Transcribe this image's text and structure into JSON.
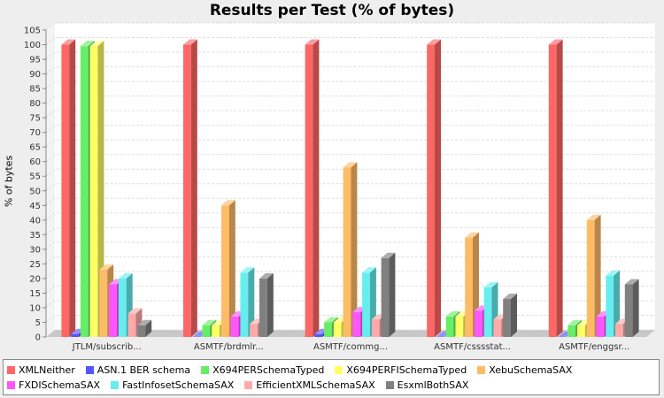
{
  "chart_data": {
    "type": "bar",
    "title": "Results per Test (% of bytes)",
    "xlabel": "",
    "ylabel": "% of bytes",
    "ylim": [
      0,
      105
    ],
    "yticks": [
      0,
      5,
      10,
      15,
      20,
      25,
      30,
      35,
      40,
      45,
      50,
      55,
      60,
      65,
      70,
      75,
      80,
      85,
      90,
      95,
      100,
      105
    ],
    "grid": true,
    "legend_position": "bottom",
    "categories": [
      "JTLM/subscrib...",
      "ASMTF/brdmlr...",
      "ASMTF/commg...",
      "ASMTF/csssstat...",
      "ASMTF/enggsr..."
    ],
    "series": [
      {
        "name": "XMLNeither",
        "color": "#ff6666",
        "values": [
          100,
          100,
          100,
          100,
          100
        ]
      },
      {
        "name": "ASN.1 BER schema",
        "color": "#5555ff",
        "values": [
          1,
          0,
          1,
          0,
          0
        ]
      },
      {
        "name": "X694PERSchemaTyped",
        "color": "#66ee66",
        "values": [
          99.5,
          4,
          5,
          7,
          4
        ]
      },
      {
        "name": "X694PERFISchemaTyped",
        "color": "#ffff66",
        "values": [
          99.5,
          4,
          5,
          7,
          4
        ]
      },
      {
        "name": "XebuSchemaSAX",
        "color": "#ffbb66",
        "values": [
          23,
          45,
          58,
          34,
          40
        ]
      },
      {
        "name": "FXDISchemaSAX",
        "color": "#ff55ff",
        "values": [
          18,
          7,
          8.5,
          9,
          7
        ]
      },
      {
        "name": "FastInfosetSchemaSAX",
        "color": "#66eeee",
        "values": [
          20,
          22,
          22,
          17,
          21
        ]
      },
      {
        "name": "EfficientXMLSchemaSAX",
        "color": "#ffaaaa",
        "values": [
          8,
          4.5,
          6,
          6,
          4.5
        ]
      },
      {
        "name": "EsxmlBothSAX",
        "color": "#808080",
        "values": [
          4,
          20,
          27,
          13,
          18
        ]
      }
    ]
  }
}
